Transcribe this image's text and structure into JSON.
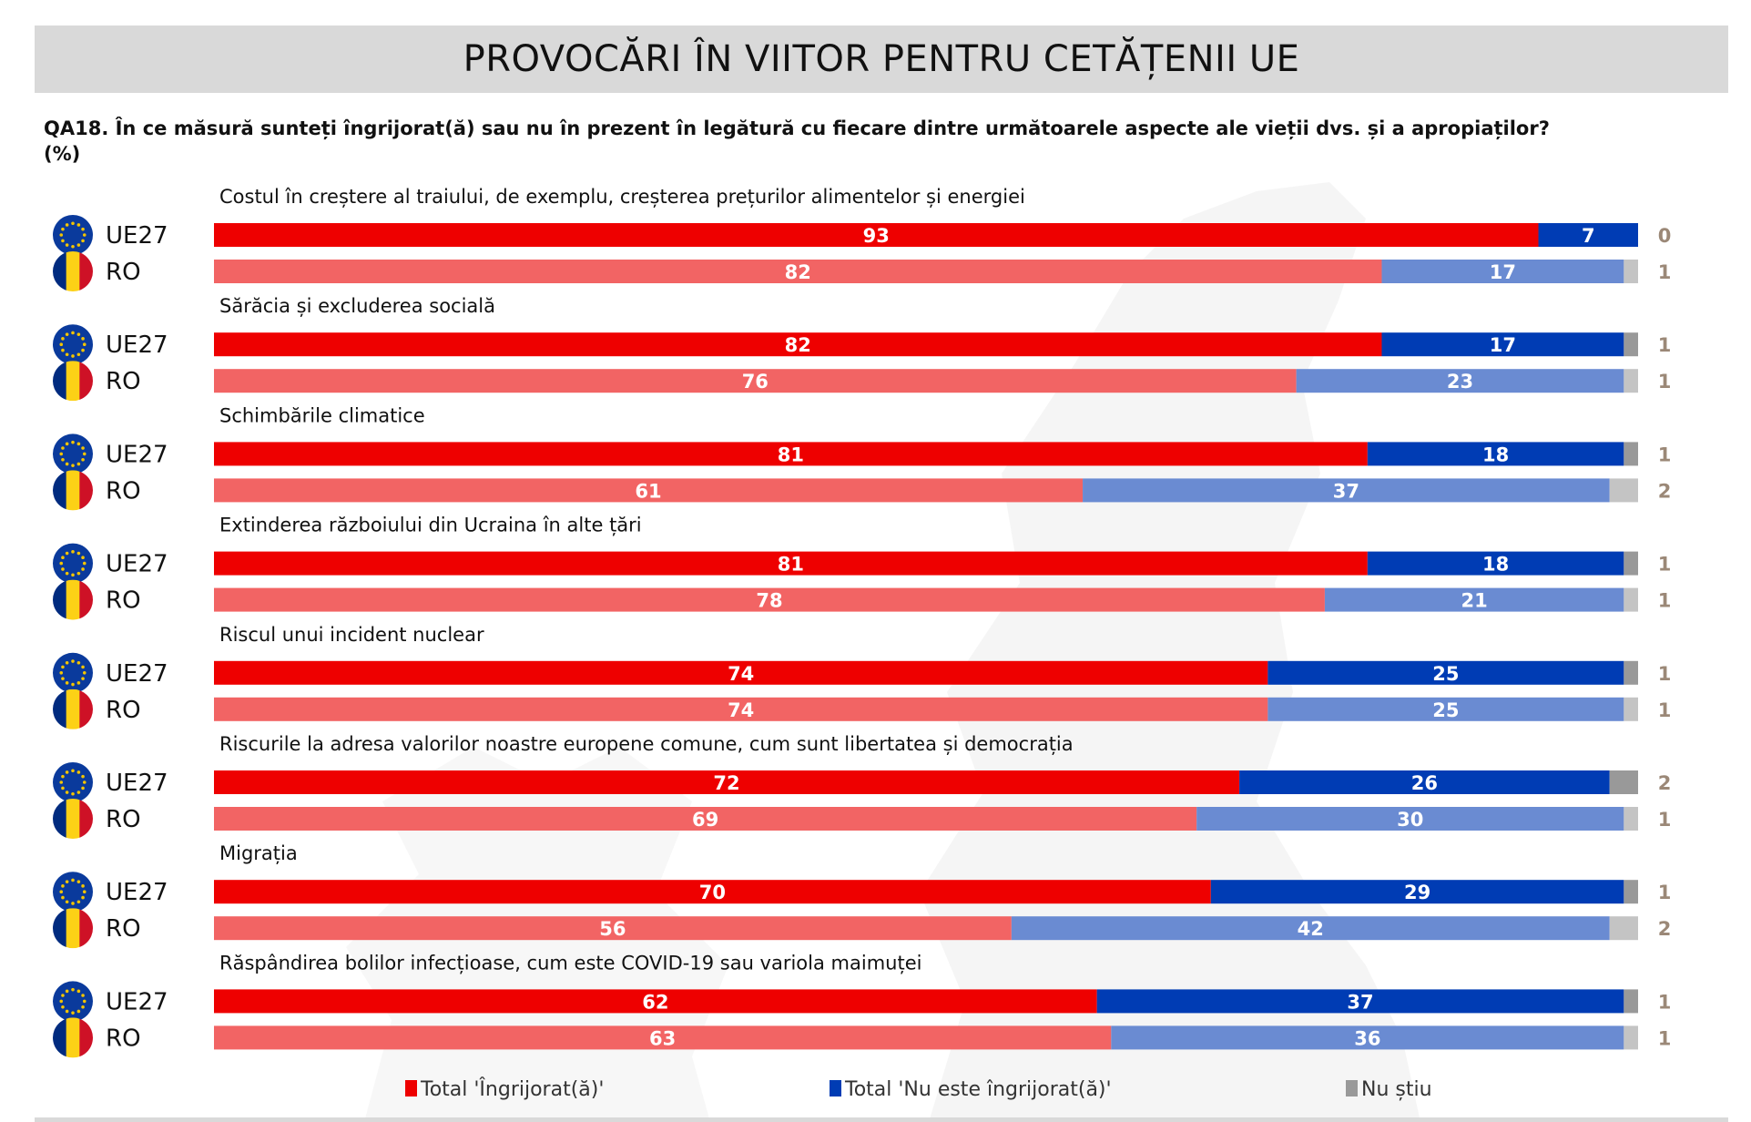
{
  "header": {
    "title": "PROVOCĂRI ÎN VIITOR PENTRU CETĂȚENII UE"
  },
  "question": {
    "line1": "QA18. În ce măsură sunteți îngrijorat(ă) sau nu în prezent în legătură cu fiecare dintre următoarele aspecte ale vieții dvs. și a apropiaților?",
    "line2": "(%)"
  },
  "chart_data": {
    "type": "bar",
    "orientation": "horizontal",
    "stacked": true,
    "title": "PROVOCĂRI ÎN VIITOR PENTRU CETĂȚENII UE",
    "subtitle": "QA18. În ce măsură sunteți îngrijorat(ă) sau nu în prezent în legătură cu fiecare dintre următoarele aspecte ale vieții dvs. și a apropiaților? (%)",
    "xlim": [
      0,
      100
    ],
    "grid": false,
    "legend_position": "bottom",
    "row_labels": [
      {
        "label": "UE27",
        "flag": "eu-flag-icon"
      },
      {
        "label": "RO",
        "flag": "romania-flag-icon"
      }
    ],
    "series": [
      {
        "name": "Total 'Îngrijorat(ă)'",
        "color_eu": "#ee0000",
        "color_ro": "#f26464"
      },
      {
        "name": "Total 'Nu este îngrijorat(ă)'",
        "color_eu": "#003cb4",
        "color_ro": "#6a8bd2"
      },
      {
        "name": "Nu știu",
        "color_eu": "#999999",
        "color_ro": "#c4c4c4"
      }
    ],
    "label_color_outside": "#9b8877",
    "groups": [
      {
        "topic": "Costul în creștere al traiului, de exemplu, creșterea prețurilor alimentelor și energiei",
        "UE27": [
          93,
          7,
          0
        ],
        "RO": [
          82,
          17,
          1
        ]
      },
      {
        "topic": "Sărăcia și excluderea socială",
        "UE27": [
          82,
          17,
          1
        ],
        "RO": [
          76,
          23,
          1
        ]
      },
      {
        "topic": "Schimbările climatice",
        "UE27": [
          81,
          18,
          1
        ],
        "RO": [
          61,
          37,
          2
        ]
      },
      {
        "topic": "Extinderea războiului din Ucraina în alte țări",
        "UE27": [
          81,
          18,
          1
        ],
        "RO": [
          78,
          21,
          1
        ]
      },
      {
        "topic": "Riscul unui incident nuclear",
        "UE27": [
          74,
          25,
          1
        ],
        "RO": [
          74,
          25,
          1
        ]
      },
      {
        "topic": "Riscurile la adresa valorilor noastre europene comune, cum sunt libertatea și democrația",
        "UE27": [
          72,
          26,
          2
        ],
        "RO": [
          69,
          30,
          1
        ]
      },
      {
        "topic": "Migrația",
        "UE27": [
          70,
          29,
          1
        ],
        "RO": [
          56,
          42,
          2
        ]
      },
      {
        "topic": "Răspândirea bolilor infecțioase, cum este COVID-19 sau variola maimuței",
        "UE27": [
          62,
          37,
          1
        ],
        "RO": [
          63,
          36,
          1
        ]
      }
    ]
  }
}
